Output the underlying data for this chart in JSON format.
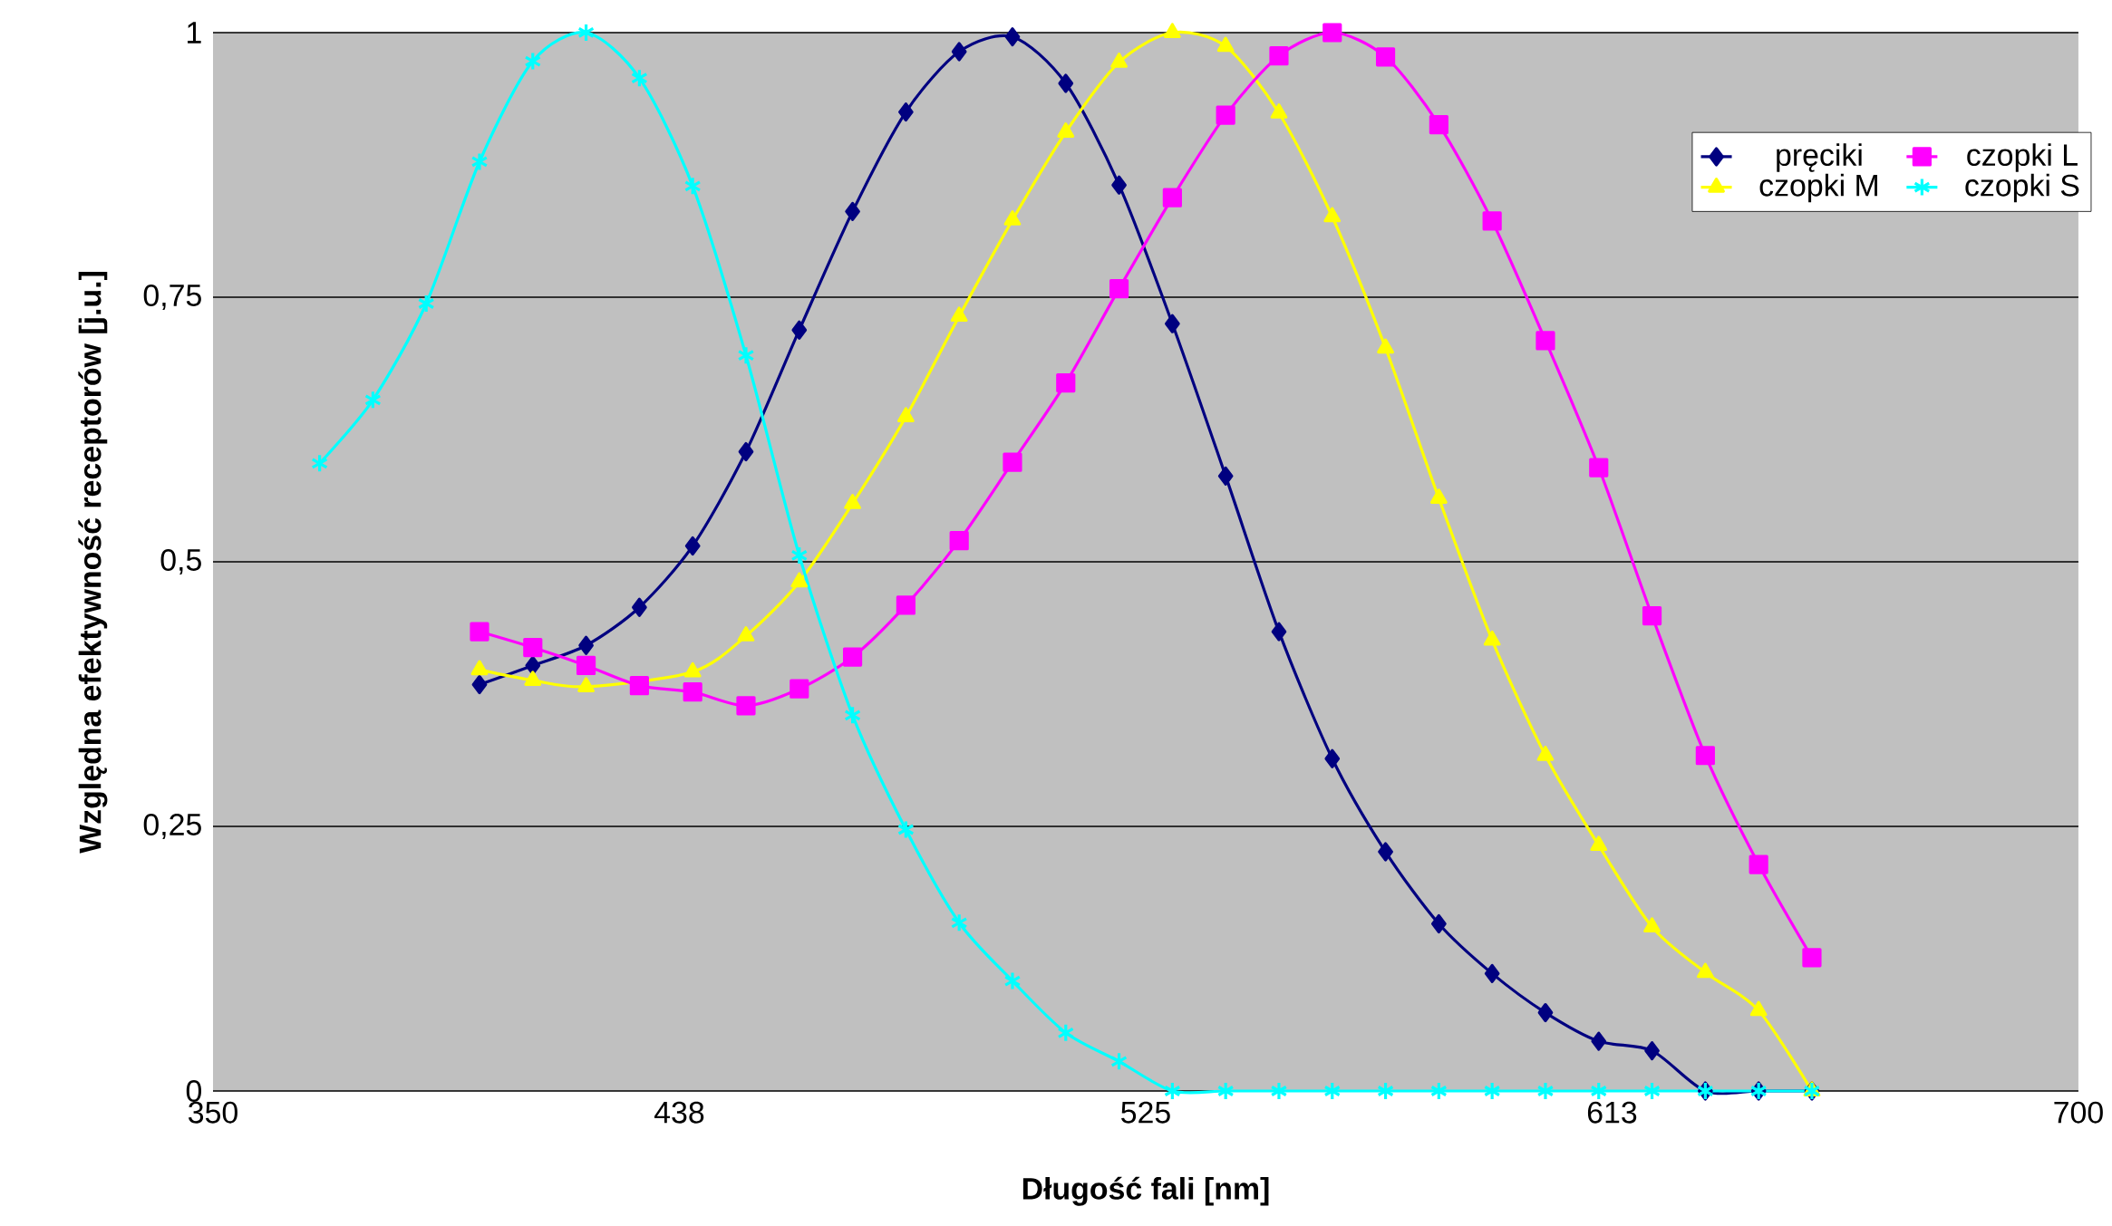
{
  "chart_data": {
    "type": "line",
    "xlabel": "Długość fali [nm]",
    "ylabel": "Względna efektywność receptorów [j.u.]",
    "xlim": [
      350,
      700
    ],
    "xticks": [
      350,
      {
        "value": 437.5,
        "label": "438"
      },
      525,
      {
        "value": 612.5,
        "label": "613"
      },
      700
    ],
    "ylim": [
      0,
      1
    ],
    "yticks": [
      0,
      {
        "value": 0.25,
        "label": "0,25"
      },
      {
        "value": 0.5,
        "label": "0,5"
      },
      {
        "value": 0.75,
        "label": "0,75"
      },
      1
    ],
    "grid": "y",
    "legend": "top right",
    "line_style": "solid",
    "series": [
      {
        "name": "pręciki",
        "color": "#000080",
        "marker": "diamond",
        "x": [
          400,
          410,
          420,
          430,
          440,
          450,
          460,
          470,
          480,
          490,
          500,
          510,
          520,
          530,
          540,
          550,
          560,
          570,
          580,
          590,
          600,
          610,
          620,
          630,
          640,
          650
        ],
        "values": [
          0.384,
          0.402,
          0.421,
          0.457,
          0.515,
          0.604,
          0.719,
          0.831,
          0.925,
          0.982,
          0.996,
          0.952,
          0.856,
          0.725,
          0.581,
          0.434,
          0.314,
          0.226,
          0.158,
          0.111,
          0.074,
          0.047,
          0.038,
          0,
          0,
          0
        ]
      },
      {
        "name": "czopki M",
        "color": "#ffff00",
        "marker": "triangle",
        "x": [
          400,
          410,
          420,
          430,
          440,
          450,
          460,
          470,
          480,
          490,
          500,
          510,
          520,
          530,
          540,
          550,
          560,
          570,
          580,
          590,
          600,
          610,
          620,
          630,
          640,
          650
        ],
        "values": [
          0.398,
          0.388,
          0.382,
          null,
          0.396,
          0.43,
          0.481,
          0.555,
          0.637,
          0.732,
          0.823,
          0.906,
          0.972,
          1.0,
          0.987,
          0.924,
          0.826,
          0.702,
          0.56,
          0.426,
          0.317,
          0.232,
          0.155,
          0.112,
          0.076,
          0
        ]
      },
      {
        "name": "czopki L",
        "color": "#ff00ff",
        "marker": "square",
        "x": [
          400,
          410,
          420,
          430,
          440,
          450,
          460,
          470,
          480,
          490,
          500,
          510,
          520,
          530,
          540,
          550,
          560,
          570,
          580,
          590,
          600,
          610,
          620,
          630,
          640,
          650
        ],
        "values": [
          0.434,
          0.419,
          0.402,
          0.383,
          0.377,
          0.364,
          0.38,
          0.41,
          0.459,
          0.52,
          0.594,
          0.669,
          0.758,
          0.844,
          0.922,
          0.978,
          1.0,
          0.977,
          0.913,
          0.822,
          0.709,
          0.589,
          0.449,
          0.317,
          0.214,
          0.126
        ]
      },
      {
        "name": "czopki S",
        "color": "#00ffff",
        "marker": "cross",
        "x": [
          370,
          380,
          390,
          400,
          410,
          420,
          430,
          440,
          450,
          460,
          470,
          480,
          490,
          500,
          510,
          520,
          530,
          540,
          550,
          560,
          570,
          580,
          590,
          600,
          610,
          620,
          630,
          640,
          650
        ],
        "values": [
          0.593,
          0.653,
          0.744,
          0.878,
          0.973,
          1.0,
          0.957,
          0.855,
          0.695,
          0.506,
          0.355,
          0.247,
          0.159,
          0.104,
          0.055,
          0.028,
          0,
          0,
          0,
          0,
          0,
          0,
          0,
          0,
          0,
          0,
          0,
          0,
          0
        ]
      }
    ]
  }
}
